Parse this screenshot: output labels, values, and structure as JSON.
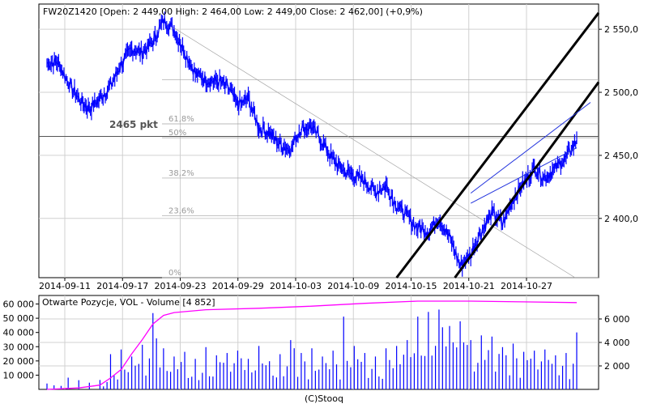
{
  "chart_data": [
    {
      "type": "candlestick",
      "title": "FW20Z1420 [Open: 2 449,00  High: 2 464,00  Low: 2 449,00  Close: 2 462,00] (+0,9%)",
      "x_tick_labels": [
        "2014-09-11",
        "2014-09-17",
        "2014-09-23",
        "2014-09-29",
        "2014-10-03",
        "2014-10-09",
        "2014-10-15",
        "2014-10-21",
        "2014-10-27"
      ],
      "y_tick_labels": [
        "2 550,0",
        "2 500,0",
        "2 450,0",
        "2 400,0"
      ],
      "y_ticks": [
        2550,
        2500,
        2450,
        2400
      ],
      "ylim": [
        2353,
        2570
      ],
      "x_range_days": [
        0,
        50
      ],
      "grid": true,
      "series": [
        {
          "x": [
            0,
            1,
            2,
            3,
            4,
            5,
            6,
            7,
            8,
            9,
            10,
            11,
            12,
            13,
            14,
            15,
            16,
            17,
            18,
            19,
            20,
            21,
            22,
            23,
            24,
            25,
            26,
            27,
            28,
            29,
            30,
            31,
            32,
            33,
            34,
            35,
            36,
            37,
            38,
            39,
            40,
            41,
            42,
            43,
            44,
            45,
            46,
            47,
            48,
            49,
            50
          ],
          "y": [
            2523,
            2524,
            2508,
            2495,
            2487,
            2495,
            2505,
            2522,
            2535,
            2531,
            2540,
            2557,
            2550,
            2532,
            2515,
            2510,
            2509,
            2505,
            2490,
            2495,
            2472,
            2468,
            2458,
            2455,
            2472,
            2472,
            2460,
            2446,
            2438,
            2434,
            2430,
            2421,
            2426,
            2410,
            2402,
            2392,
            2390,
            2400,
            2385,
            2362,
            2372,
            2390,
            2405,
            2395,
            2415,
            2428,
            2440,
            2432,
            2440,
            2448,
            2462
          ]
        }
      ],
      "annotations": {
        "horizontal_level": {
          "label": "2465 pkt",
          "value": 2465
        },
        "fibonacci_labels": [
          "61,8%",
          "50%",
          "38,2%",
          "23,6%",
          "0%"
        ],
        "fibonacci_values": [
          2475,
          2464,
          2432,
          2402,
          2353
        ],
        "fibonacci_upper_label_value": 2510
      },
      "line_color": "#0000ff"
    },
    {
      "type": "bar",
      "title": "Otwarte Pozycje, VOL - Volume [4 852]",
      "left_tick_labels": [
        "60 000",
        "50 000",
        "40 000",
        "30 000",
        "20 000",
        "10 000"
      ],
      "left_ticks": [
        60000,
        50000,
        40000,
        30000,
        20000,
        10000
      ],
      "left_ylim": [
        0,
        66000
      ],
      "right_tick_labels": [
        "6 000",
        "4 000",
        "2 000"
      ],
      "right_ticks": [
        6000,
        4000,
        2000
      ],
      "right_ylim": [
        0,
        8000
      ],
      "open_interest": {
        "x": [
          0,
          3,
          5,
          6,
          7,
          8,
          9,
          10,
          11,
          12,
          15,
          20,
          25,
          30,
          35,
          40,
          45,
          50
        ],
        "y": [
          0,
          1000,
          3000,
          8000,
          14000,
          25000,
          35000,
          46000,
          52000,
          54000,
          56000,
          57000,
          58500,
          60500,
          62000,
          62000,
          61500,
          61000
        ],
        "color": "#ff00ff"
      },
      "volume": {
        "x": [
          0,
          2,
          5,
          6,
          7,
          8,
          9,
          10,
          11,
          12,
          13,
          14,
          15,
          16,
          17,
          18,
          19,
          20,
          21,
          22,
          23,
          24,
          25,
          26,
          27,
          28,
          29,
          30,
          31,
          32,
          33,
          34,
          35,
          36,
          37,
          38,
          39,
          40,
          41,
          42,
          43,
          44,
          45,
          46,
          47,
          48,
          49,
          50
        ],
        "values": [
          500,
          1000,
          800,
          3000,
          3400,
          2800,
          3800,
          6500,
          3500,
          2800,
          3200,
          2600,
          3600,
          2900,
          3100,
          3300,
          2600,
          3700,
          2400,
          3000,
          4200,
          3100,
          3500,
          2800,
          3300,
          6200,
          3700,
          3100,
          2800,
          3500,
          3700,
          4200,
          6200,
          6600,
          6800,
          5400,
          5800,
          4200,
          4600,
          4500,
          3600,
          3900,
          3200,
          3300,
          3400,
          2900,
          3100,
          4852
        ],
        "color": "#0000ff"
      }
    }
  ],
  "footer_text": "(C)Stooq"
}
